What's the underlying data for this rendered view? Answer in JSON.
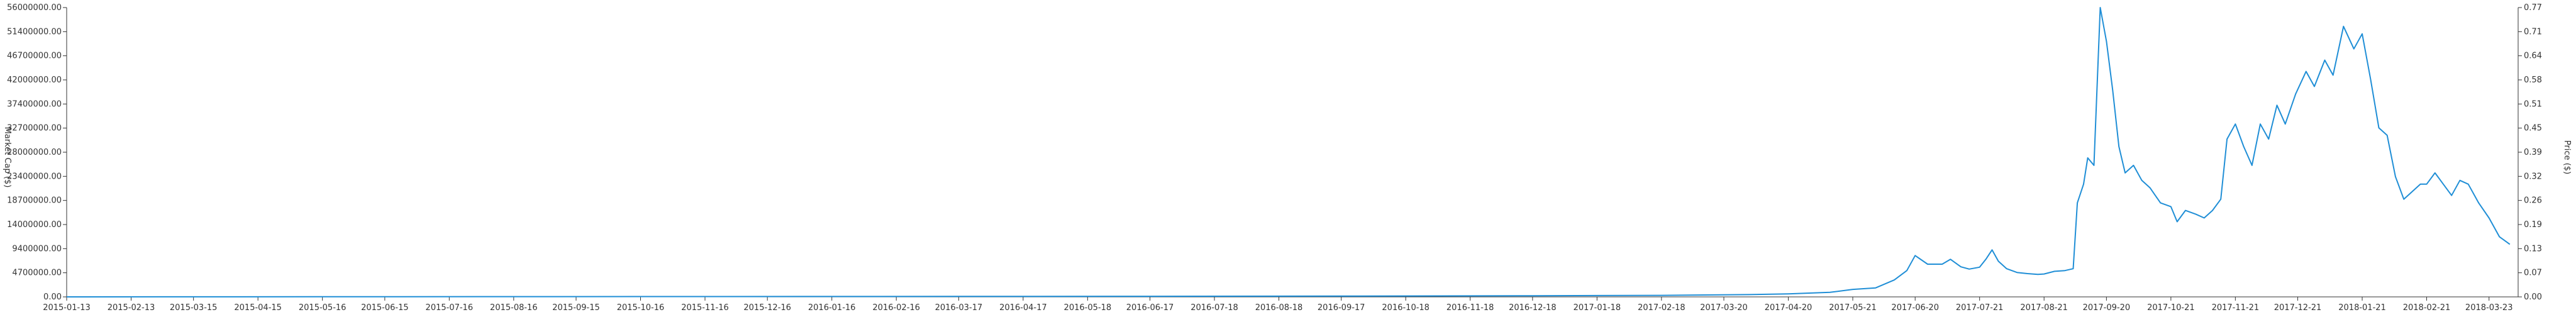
{
  "chart_data": {
    "type": "line",
    "title": "",
    "xlabel": "",
    "ylabel_left": "Market Cap ($)",
    "ylabel_right": "Price ($)",
    "grid": false,
    "legend": "none",
    "color": "#1f8ed6",
    "x_tick_labels": [
      "2015-01-13",
      "2015-02-13",
      "2015-03-15",
      "2015-04-15",
      "2015-05-16",
      "2015-06-15",
      "2015-07-16",
      "2015-08-16",
      "2015-09-15",
      "2015-10-16",
      "2015-11-16",
      "2015-12-16",
      "2016-01-16",
      "2016-02-16",
      "2016-03-17",
      "2016-04-17",
      "2016-05-18",
      "2016-06-17",
      "2016-07-18",
      "2016-08-18",
      "2016-09-17",
      "2016-10-18",
      "2016-11-18",
      "2016-12-18",
      "2017-01-18",
      "2017-02-18",
      "2017-03-20",
      "2017-04-20",
      "2017-05-21",
      "2017-06-20",
      "2017-07-21",
      "2017-08-21",
      "2017-09-20",
      "2017-10-21",
      "2017-11-21",
      "2017-12-21",
      "2018-01-21",
      "2018-02-21",
      "2018-03-23"
    ],
    "y_left_tick_labels": [
      "0.00",
      "4700000.00",
      "9400000.00",
      "14000000.00",
      "18700000.00",
      "23400000.00",
      "28000000.00",
      "32700000.00",
      "37400000.00",
      "42000000.00",
      "46700000.00",
      "51400000.00",
      "56000000.00"
    ],
    "y_right_tick_labels": [
      "0.00",
      "0.07",
      "0.13",
      "0.19",
      "0.26",
      "0.32",
      "0.39",
      "0.45",
      "0.51",
      "0.58",
      "0.64",
      "0.71",
      "0.77"
    ],
    "ylim_left": [
      0,
      56000000
    ],
    "ylim_right": [
      0,
      0.77
    ],
    "series": [
      {
        "values": [
          [
            "2015-01-13",
            0.0
          ],
          [
            "2015-06-15",
            0.0005
          ],
          [
            "2016-01-16",
            0.001
          ],
          [
            "2016-06-17",
            0.0015
          ],
          [
            "2016-09-17",
            0.002
          ],
          [
            "2016-12-18",
            0.003
          ],
          [
            "2017-02-18",
            0.004
          ],
          [
            "2017-04-01",
            0.006
          ],
          [
            "2017-04-20",
            0.008
          ],
          [
            "2017-05-10",
            0.012
          ],
          [
            "2017-05-21",
            0.02
          ],
          [
            "2017-06-01",
            0.024
          ],
          [
            "2017-06-10",
            0.045
          ],
          [
            "2017-06-16",
            0.07
          ],
          [
            "2017-06-20",
            0.11
          ],
          [
            "2017-06-26",
            0.087
          ],
          [
            "2017-07-03",
            0.087
          ],
          [
            "2017-07-07",
            0.1
          ],
          [
            "2017-07-12",
            0.08
          ],
          [
            "2017-07-16",
            0.074
          ],
          [
            "2017-07-21",
            0.079
          ],
          [
            "2017-07-24",
            0.1
          ],
          [
            "2017-07-27",
            0.125
          ],
          [
            "2017-07-30",
            0.095
          ],
          [
            "2017-08-03",
            0.075
          ],
          [
            "2017-08-08",
            0.065
          ],
          [
            "2017-08-13",
            0.062
          ],
          [
            "2017-08-18",
            0.06
          ],
          [
            "2017-08-21",
            0.061
          ],
          [
            "2017-08-26",
            0.068
          ],
          [
            "2017-08-31",
            0.07
          ],
          [
            "2017-09-04",
            0.075
          ],
          [
            "2017-09-06",
            0.25
          ],
          [
            "2017-09-09",
            0.3
          ],
          [
            "2017-09-11",
            0.37
          ],
          [
            "2017-09-14",
            0.35
          ],
          [
            "2017-09-17",
            0.77
          ],
          [
            "2017-09-20",
            0.68
          ],
          [
            "2017-09-23",
            0.55
          ],
          [
            "2017-09-26",
            0.4
          ],
          [
            "2017-09-29",
            0.33
          ],
          [
            "2017-10-03",
            0.35
          ],
          [
            "2017-10-07",
            0.31
          ],
          [
            "2017-10-11",
            0.29
          ],
          [
            "2017-10-16",
            0.25
          ],
          [
            "2017-10-21",
            0.24
          ],
          [
            "2017-10-24",
            0.2
          ],
          [
            "2017-10-28",
            0.23
          ],
          [
            "2017-11-02",
            0.22
          ],
          [
            "2017-11-06",
            0.21
          ],
          [
            "2017-11-10",
            0.23
          ],
          [
            "2017-11-14",
            0.26
          ],
          [
            "2017-11-17",
            0.42
          ],
          [
            "2017-11-21",
            0.46
          ],
          [
            "2017-11-25",
            0.4
          ],
          [
            "2017-11-29",
            0.35
          ],
          [
            "2017-12-03",
            0.46
          ],
          [
            "2017-12-07",
            0.42
          ],
          [
            "2017-12-11",
            0.51
          ],
          [
            "2017-12-15",
            0.46
          ],
          [
            "2017-12-20",
            0.54
          ],
          [
            "2017-12-25",
            0.6
          ],
          [
            "2017-12-29",
            0.56
          ],
          [
            "2018-01-03",
            0.63
          ],
          [
            "2018-01-07",
            0.59
          ],
          [
            "2018-01-12",
            0.72
          ],
          [
            "2018-01-17",
            0.66
          ],
          [
            "2018-01-21",
            0.7
          ],
          [
            "2018-01-25",
            0.58
          ],
          [
            "2018-01-29",
            0.45
          ],
          [
            "2018-02-02",
            0.43
          ],
          [
            "2018-02-06",
            0.32
          ],
          [
            "2018-02-10",
            0.26
          ],
          [
            "2018-02-14",
            0.28
          ],
          [
            "2018-02-18",
            0.3
          ],
          [
            "2018-02-21",
            0.3
          ],
          [
            "2018-02-25",
            0.33
          ],
          [
            "2018-03-01",
            0.3
          ],
          [
            "2018-03-05",
            0.27
          ],
          [
            "2018-03-09",
            0.31
          ],
          [
            "2018-03-13",
            0.3
          ],
          [
            "2018-03-18",
            0.25
          ],
          [
            "2018-03-23",
            0.21
          ],
          [
            "2018-03-28",
            0.16
          ],
          [
            "2018-04-02",
            0.14
          ]
        ]
      }
    ]
  }
}
